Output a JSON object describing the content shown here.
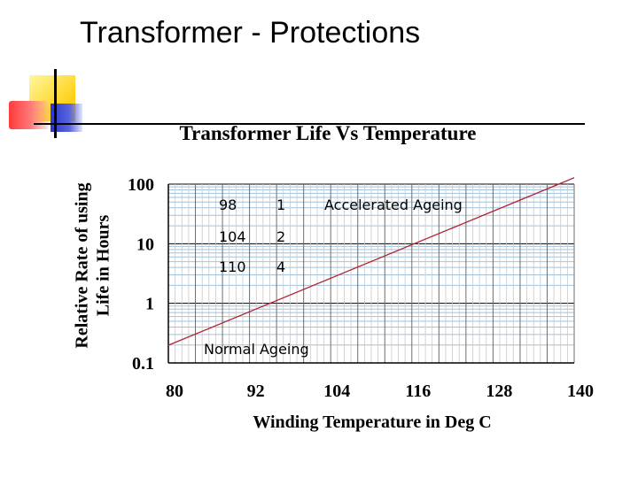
{
  "slide": {
    "title": "Transformer - Protections"
  },
  "chart_data": {
    "type": "line",
    "title": "Transformer Life Vs Temperature",
    "xlabel": "Winding Temperature in Deg C",
    "ylabel": "Relative Rate of using\nLife in Hours",
    "y_scale": "log",
    "xlim": [
      80,
      140
    ],
    "ylim": [
      0.1,
      100
    ],
    "x_ticks": [
      "80",
      "92",
      "104",
      "116",
      "128",
      "140"
    ],
    "y_ticks": [
      "0.1",
      "1",
      "10",
      "100"
    ],
    "grid": true,
    "line_color": "#b22234",
    "series": [
      {
        "x": [
          80,
          140
        ],
        "y": [
          0.198,
          128
        ]
      }
    ],
    "table": [
      [
        "98",
        "1"
      ],
      [
        "104",
        "2"
      ],
      [
        "110",
        "4"
      ]
    ],
    "annotations": {
      "accelerated": "Accelerated Ageing",
      "normal": "Normal Ageing"
    }
  }
}
